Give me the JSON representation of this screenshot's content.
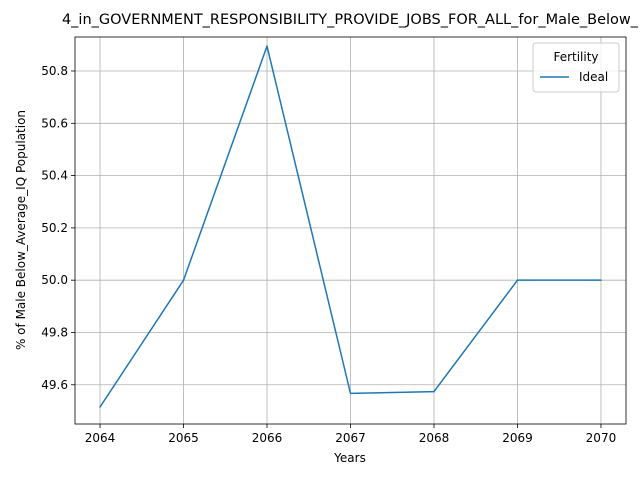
{
  "chart_data": {
    "type": "line",
    "title": "4_in_GOVERNMENT_RESPONSIBILITY_PROVIDE_JOBS_FOR_ALL_for_Male_Below_",
    "xlabel": "Years",
    "ylabel": "% of Male Below_Average_IQ Population",
    "x": [
      2064,
      2065,
      2066,
      2067,
      2068,
      2069,
      2070
    ],
    "x_ticks": [
      "2064",
      "2065",
      "2066",
      "2067",
      "2068",
      "2069",
      "2070"
    ],
    "y_ticks": [
      "49.6",
      "49.8",
      "50.0",
      "50.2",
      "50.4",
      "50.6",
      "50.8"
    ],
    "ylim": [
      49.45,
      50.93
    ],
    "xlim": [
      2063.7,
      2070.3
    ],
    "grid": true,
    "legend": {
      "title": "Fertility",
      "placement": "top-right"
    },
    "series": [
      {
        "name": "Ideal",
        "color": "#1f77b4",
        "values": [
          49.515,
          50.0,
          50.895,
          49.567,
          49.574,
          50.0,
          50.0
        ]
      }
    ]
  }
}
